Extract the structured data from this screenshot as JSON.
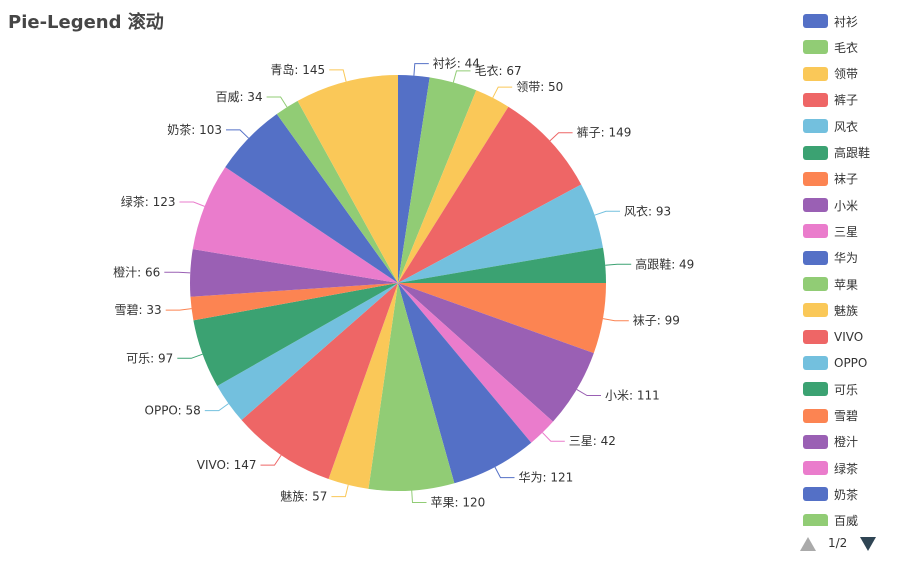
{
  "title": "Pie-Legend 滚动",
  "colors": [
    "#5470c6",
    "#91cc75",
    "#fac858",
    "#ee6666",
    "#73c0de",
    "#3ba272",
    "#fc8452",
    "#9a60b4",
    "#ea7ccc"
  ],
  "chart_data": {
    "type": "pie",
    "title": "Pie-Legend 滚动",
    "slices": [
      {
        "name": "衬衫",
        "value": 44
      },
      {
        "name": "毛衣",
        "value": 67
      },
      {
        "name": "领带",
        "value": 50
      },
      {
        "name": "裤子",
        "value": 149
      },
      {
        "name": "风衣",
        "value": 93
      },
      {
        "name": "高跟鞋",
        "value": 49
      },
      {
        "name": "袜子",
        "value": 99
      },
      {
        "name": "小米",
        "value": 111
      },
      {
        "name": "三星",
        "value": 42
      },
      {
        "name": "华为",
        "value": 121
      },
      {
        "name": "苹果",
        "value": 120
      },
      {
        "name": "魅族",
        "value": 57
      },
      {
        "name": "VIVO",
        "value": 147
      },
      {
        "name": "OPPO",
        "value": 58
      },
      {
        "name": "可乐",
        "value": 97
      },
      {
        "name": "雪碧",
        "value": 33
      },
      {
        "name": "橙汁",
        "value": 66
      },
      {
        "name": "绿茶",
        "value": 123
      },
      {
        "name": "奶茶",
        "value": 103
      },
      {
        "name": "百威",
        "value": 34
      },
      {
        "name": "青岛",
        "value": 145
      }
    ],
    "legend": {
      "placement": "right",
      "visible_items": [
        "衬衫",
        "毛衣",
        "领带",
        "裤子",
        "风衣",
        "高跟鞋",
        "袜子",
        "小米",
        "三星",
        "华为",
        "苹果",
        "魅族",
        "VIVO",
        "OPPO",
        "可乐",
        "雪碧",
        "橙汁",
        "绿茶",
        "奶茶",
        "百威"
      ]
    }
  },
  "pager": {
    "text": "1/2",
    "prev_icon": "triangle-up-icon",
    "next_icon": "triangle-down-icon"
  }
}
